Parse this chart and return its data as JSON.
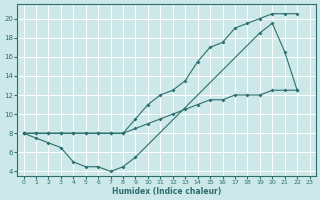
{
  "curve1_x": [
    0,
    1,
    2,
    3,
    4,
    5,
    6,
    7,
    8,
    9,
    10,
    11,
    12,
    13,
    14,
    15,
    16,
    17,
    18,
    19,
    20,
    21,
    22
  ],
  "curve1_y": [
    8,
    8,
    8,
    8,
    8,
    8,
    8,
    8,
    8,
    9.5,
    11,
    12,
    12.5,
    13.5,
    15.5,
    17,
    17.5,
    19,
    19.5,
    20,
    20.5,
    20.5,
    20.5
  ],
  "curve2_x": [
    0,
    1,
    2,
    3,
    4,
    5,
    6,
    7,
    8,
    9,
    19,
    20,
    21,
    22
  ],
  "curve2_y": [
    8,
    7.5,
    7,
    6.5,
    5,
    4.5,
    4.5,
    4,
    4.5,
    5.5,
    18.5,
    19.5,
    16.5,
    12.5
  ],
  "curve3_x": [
    0,
    1,
    2,
    3,
    4,
    5,
    6,
    7,
    8,
    9,
    10,
    11,
    12,
    13,
    14,
    15,
    16,
    17,
    18,
    19,
    20,
    21,
    22
  ],
  "curve3_y": [
    8,
    8,
    8,
    8,
    8,
    8,
    8,
    8,
    8,
    8.5,
    9,
    9.5,
    10,
    10.5,
    11,
    11.5,
    11.5,
    12,
    12,
    12,
    12.5,
    12.5,
    12.5
  ],
  "color": "#2d6e6e",
  "bg_color": "#cce8e8",
  "grid_color": "#ffffff",
  "xlabel": "Humidex (Indice chaleur)",
  "xlim": [
    -0.5,
    23.5
  ],
  "ylim": [
    3.5,
    21.5
  ],
  "yticks": [
    4,
    6,
    8,
    10,
    12,
    14,
    16,
    18,
    20
  ],
  "xticks": [
    0,
    1,
    2,
    3,
    4,
    5,
    6,
    7,
    8,
    9,
    10,
    11,
    12,
    13,
    14,
    15,
    16,
    17,
    18,
    19,
    20,
    21,
    22,
    23
  ]
}
